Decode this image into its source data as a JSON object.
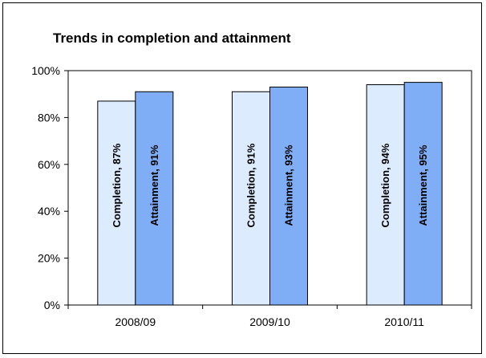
{
  "chart_data": {
    "type": "bar",
    "title": "Trends in completion and attainment",
    "categories": [
      "2008/09",
      "2009/10",
      "2010/11"
    ],
    "series": [
      {
        "name": "Completion",
        "values": [
          87,
          91,
          94
        ],
        "labels": [
          "Completion, 87%",
          "Completion, 91%",
          "Completion, 94%"
        ],
        "color": "#DDEBFF"
      },
      {
        "name": "Attainment",
        "values": [
          91,
          93,
          95
        ],
        "labels": [
          "Attainment, 91%",
          "Attainment, 93%",
          "Attainment, 95%"
        ],
        "color": "#7FAEF6"
      }
    ],
    "yticks": [
      "0%",
      "20%",
      "40%",
      "60%",
      "80%",
      "100%"
    ],
    "ylim": [
      0,
      100
    ],
    "grid": false,
    "legend": "none"
  }
}
